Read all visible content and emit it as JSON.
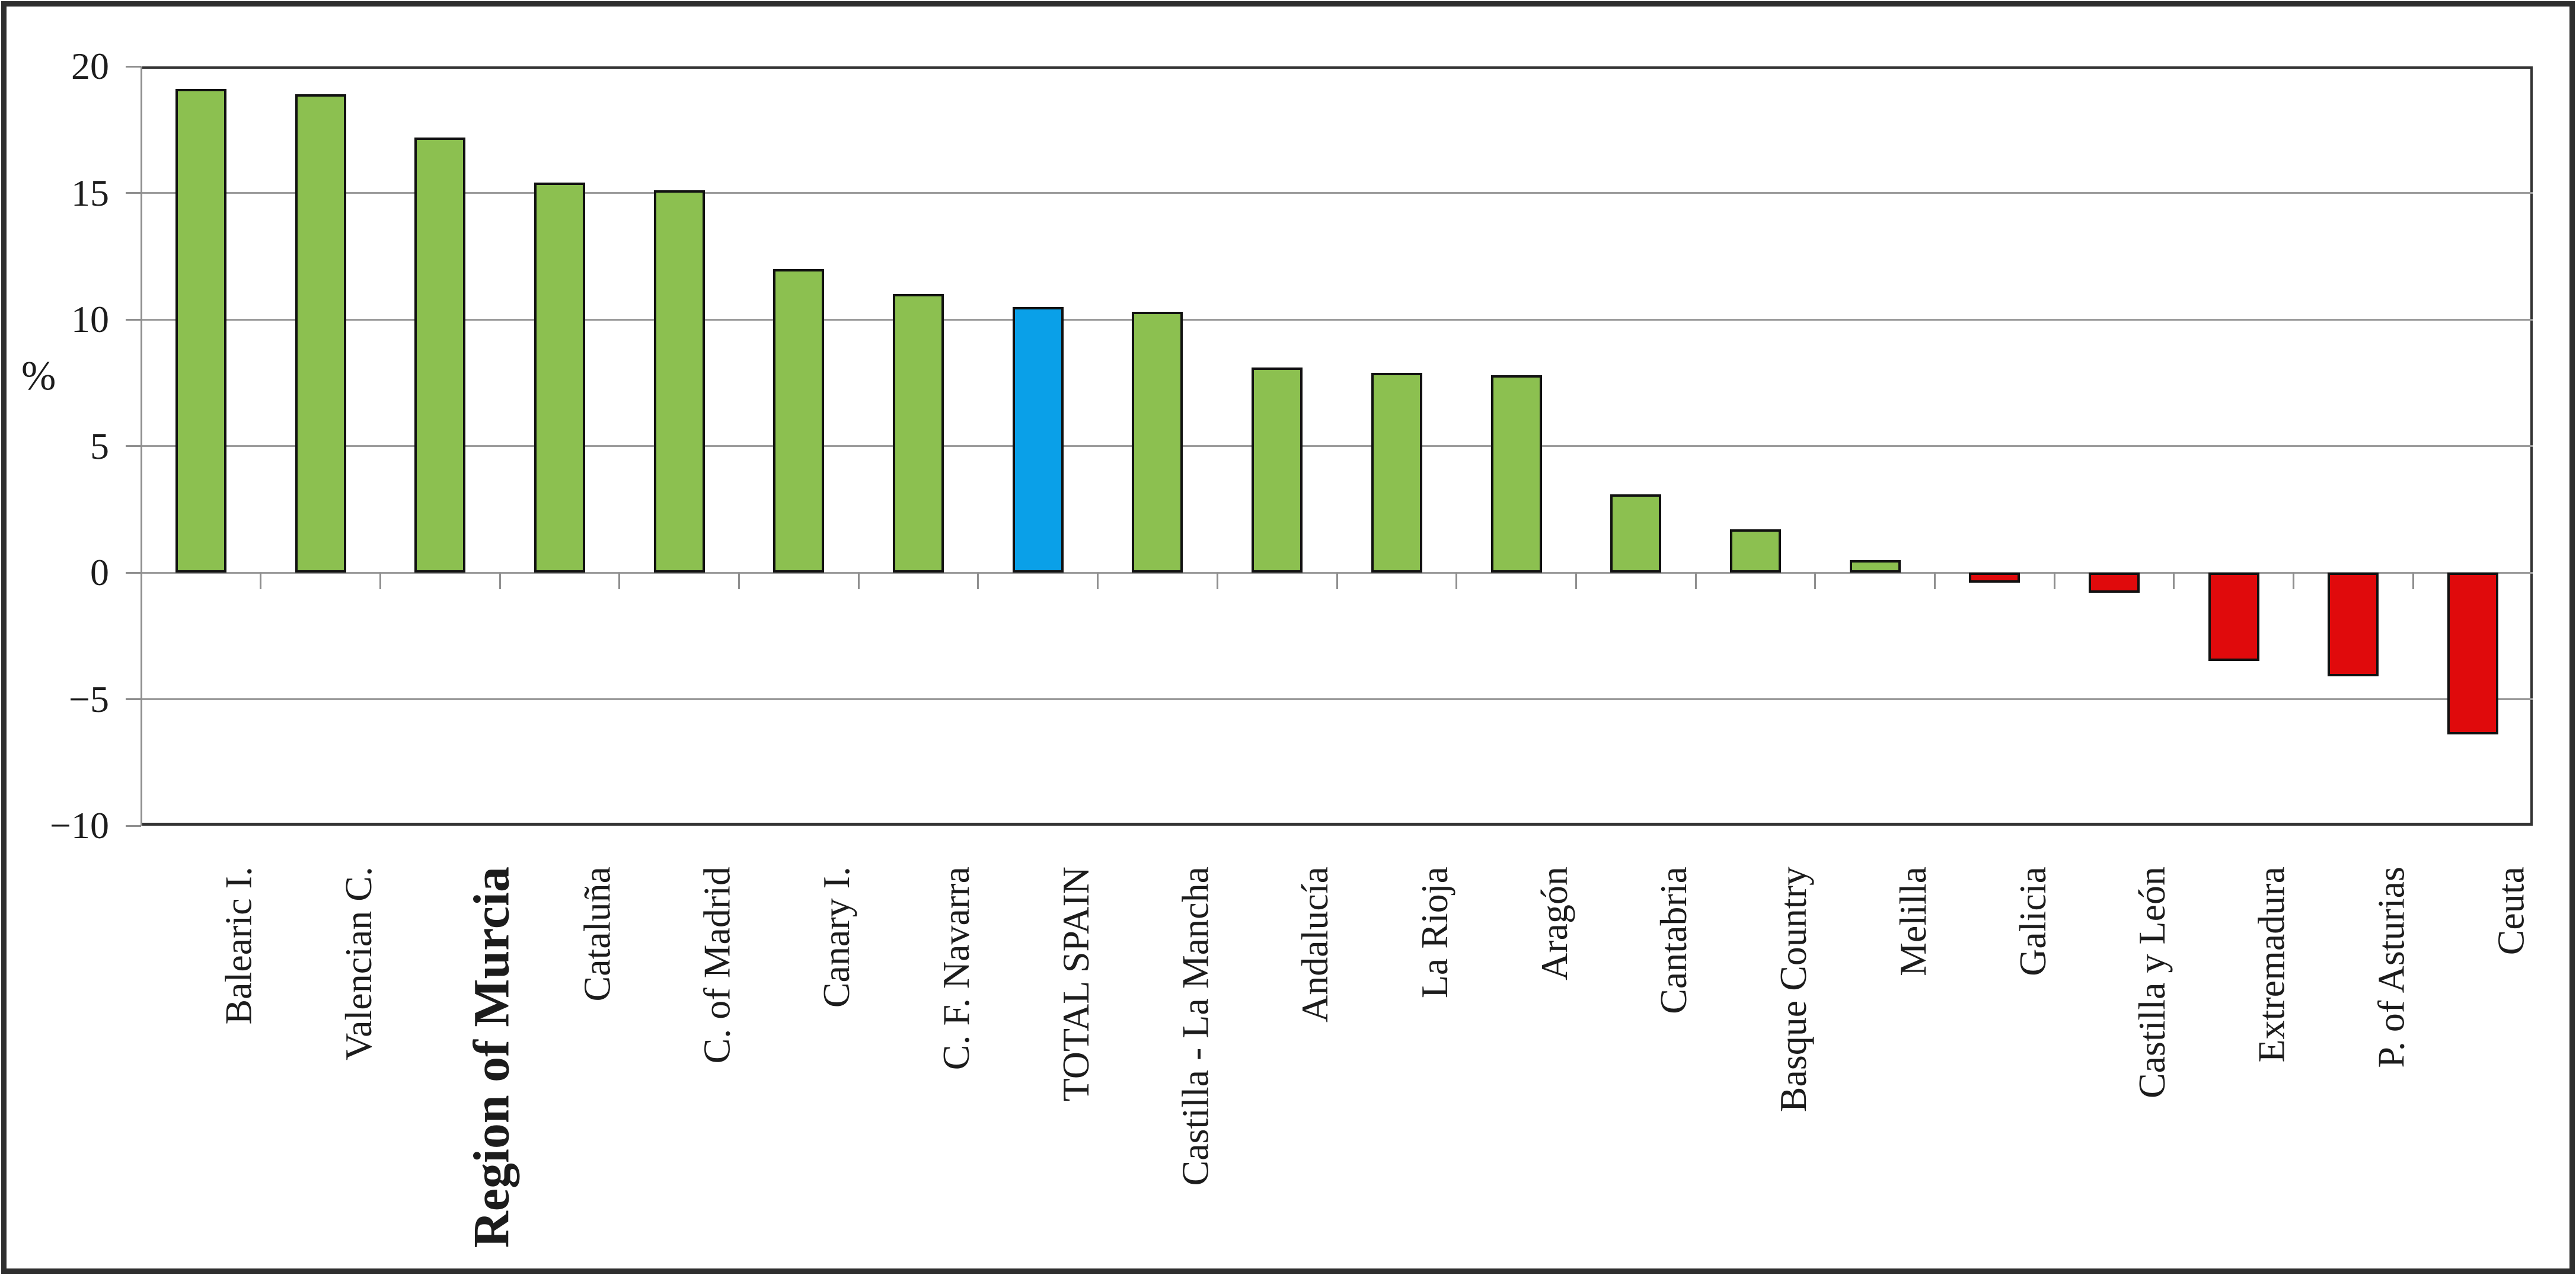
{
  "figure": {
    "background": "#ffffff",
    "frame_color": "#2f2f2f"
  },
  "chart_data": {
    "type": "bar",
    "title": "",
    "xlabel": "",
    "ylabel": "%",
    "ylim": [
      -10,
      20
    ],
    "grid": true,
    "legend": "none",
    "yticks": [
      {
        "value": 20,
        "label": "20"
      },
      {
        "value": 15,
        "label": "15"
      },
      {
        "value": 10,
        "label": "10"
      },
      {
        "value": 5,
        "label": "5"
      },
      {
        "value": 0,
        "label": "0"
      },
      {
        "value": -5,
        "label": "−5"
      },
      {
        "value": -10,
        "label": "−10"
      }
    ],
    "categories": [
      "Balearic I.",
      "Valencian C.",
      "Region of Murcia",
      "Cataluña",
      "C. of Madrid",
      "Canary I.",
      "C. F. Navarra",
      "TOTAL SPAIN",
      "Castilla - La Mancha",
      "Andalucía",
      "La Rioja",
      "Aragón",
      "Cantabria",
      "Basque Country",
      "Melilla",
      "Galicia",
      "Castilla y León",
      "Extremadura",
      "P. of Asturias",
      "Ceuta"
    ],
    "values": [
      19.1,
      18.9,
      17.2,
      15.4,
      15.1,
      12.0,
      11.0,
      10.5,
      10.3,
      8.1,
      7.9,
      7.8,
      3.1,
      1.7,
      0.5,
      -0.4,
      -0.8,
      -3.5,
      -4.1,
      -6.4
    ],
    "bar_styles": [
      "green",
      "green",
      "green",
      "green",
      "green",
      "green",
      "green",
      "blue",
      "green",
      "green",
      "green",
      "green",
      "green",
      "green",
      "green",
      "red",
      "red",
      "red",
      "red",
      "red"
    ],
    "emphasized_category": "Region of Murcia",
    "colors": {
      "green": "#8CC050",
      "blue": "#0AA0E8",
      "red": "#E00A0C",
      "bar_border": "#111111",
      "gridline": "#9C9C9C",
      "axis": "#8F8F8F",
      "plot_border": "#333333",
      "text": "#1C1C1C"
    }
  }
}
